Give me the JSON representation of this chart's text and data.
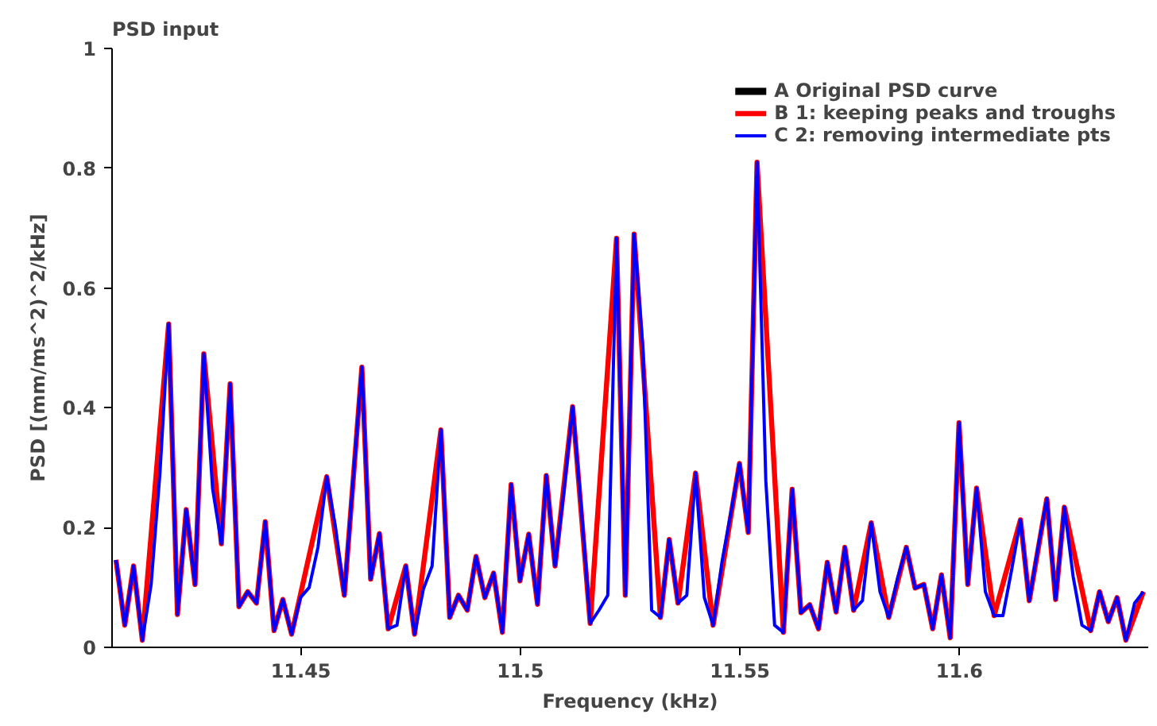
{
  "chart_data": {
    "type": "line",
    "title": "PSD input",
    "xlabel": "Frequency (kHz)",
    "ylabel": "PSD [(mm/ms^2)^2/kHz]",
    "xlim": [
      11.407,
      11.643
    ],
    "ylim": [
      0,
      1
    ],
    "xticks": [
      11.45,
      11.5,
      11.55,
      11.6
    ],
    "yticks": [
      0,
      0.2,
      0.4,
      0.6,
      0.8,
      1
    ],
    "grid": false,
    "legend": "top right",
    "line_style": "solid",
    "marker": "none",
    "series": [
      {
        "name": "A Original PSD curve",
        "color": "#000000"
      },
      {
        "name": "B 1: keeping peaks and troughs",
        "color": "#ff0000",
        "x": [
          11.4079,
          11.4099,
          11.4119,
          11.4139,
          11.4199,
          11.4219,
          11.4239,
          11.4259,
          11.4279,
          11.4319,
          11.4339,
          11.4359,
          11.4379,
          11.4399,
          11.4419,
          11.4439,
          11.4459,
          11.4479,
          11.4559,
          11.4599,
          11.4639,
          11.4659,
          11.4679,
          11.4699,
          11.4739,
          11.4759,
          11.4819,
          11.4839,
          11.4859,
          11.4879,
          11.4899,
          11.4919,
          11.4939,
          11.4959,
          11.4979,
          11.4999,
          11.5019,
          11.5039,
          11.5059,
          11.5079,
          11.5119,
          11.5159,
          11.5219,
          11.5239,
          11.5259,
          11.5319,
          11.5339,
          11.5359,
          11.5399,
          11.5439,
          11.5499,
          11.5519,
          11.5539,
          11.5599,
          11.5619,
          11.5639,
          11.5659,
          11.5679,
          11.5699,
          11.5719,
          11.5739,
          11.5759,
          11.5799,
          11.5839,
          11.5879,
          11.5899,
          11.5919,
          11.5939,
          11.5959,
          11.5979,
          11.5999,
          11.6019,
          11.6039,
          11.6079,
          11.6139,
          11.6159,
          11.6199,
          11.6219,
          11.6239,
          11.6299,
          11.6319,
          11.6339,
          11.6359,
          11.6379,
          11.6419
        ],
        "values": [
          0.146,
          0.037,
          0.136,
          0.012,
          0.54,
          0.055,
          0.23,
          0.105,
          0.49,
          0.173,
          0.44,
          0.068,
          0.093,
          0.074,
          0.21,
          0.028,
          0.08,
          0.022,
          0.285,
          0.087,
          0.468,
          0.114,
          0.19,
          0.031,
          0.136,
          0.022,
          0.363,
          0.05,
          0.087,
          0.062,
          0.152,
          0.083,
          0.124,
          0.025,
          0.272,
          0.111,
          0.189,
          0.072,
          0.287,
          0.136,
          0.402,
          0.04,
          0.683,
          0.087,
          0.69,
          0.05,
          0.18,
          0.074,
          0.291,
          0.037,
          0.307,
          0.192,
          0.81,
          0.025,
          0.264,
          0.058,
          0.071,
          0.031,
          0.142,
          0.059,
          0.167,
          0.062,
          0.208,
          0.05,
          0.167,
          0.099,
          0.105,
          0.031,
          0.121,
          0.016,
          0.375,
          0.105,
          0.266,
          0.053,
          0.213,
          0.078,
          0.248,
          0.08,
          0.234,
          0.028,
          0.093,
          0.043,
          0.083,
          0.012,
          0.093
        ]
      },
      {
        "name": "C 2: removing intermediate pts",
        "color": "#0000ff",
        "x": [
          11.4079,
          11.4099,
          11.4119,
          11.4139,
          11.4159,
          11.4179,
          11.4199,
          11.4219,
          11.4239,
          11.4259,
          11.4279,
          11.4299,
          11.4319,
          11.4339,
          11.4359,
          11.4379,
          11.4399,
          11.4419,
          11.4439,
          11.4459,
          11.4479,
          11.4499,
          11.4519,
          11.4539,
          11.4559,
          11.4579,
          11.4599,
          11.4619,
          11.4639,
          11.4659,
          11.4679,
          11.4699,
          11.4719,
          11.4739,
          11.4759,
          11.4779,
          11.4799,
          11.4819,
          11.4839,
          11.4859,
          11.4879,
          11.4899,
          11.4919,
          11.4939,
          11.4959,
          11.4979,
          11.4999,
          11.5019,
          11.5039,
          11.5059,
          11.5079,
          11.5099,
          11.5119,
          11.5139,
          11.5159,
          11.5179,
          11.5199,
          11.5219,
          11.5239,
          11.5259,
          11.5279,
          11.5299,
          11.5319,
          11.5339,
          11.5359,
          11.5379,
          11.5399,
          11.5419,
          11.5439,
          11.5459,
          11.5479,
          11.5499,
          11.5519,
          11.5539,
          11.5559,
          11.5579,
          11.5599,
          11.5619,
          11.5639,
          11.5659,
          11.5679,
          11.5699,
          11.5719,
          11.5739,
          11.5759,
          11.5779,
          11.5799,
          11.5819,
          11.5839,
          11.5859,
          11.5879,
          11.5899,
          11.5919,
          11.5939,
          11.5959,
          11.5979,
          11.5999,
          11.6019,
          11.6039,
          11.6059,
          11.6079,
          11.6099,
          11.6119,
          11.6139,
          11.6159,
          11.6179,
          11.6199,
          11.6219,
          11.6239,
          11.6259,
          11.6279,
          11.6299,
          11.6319,
          11.6339,
          11.6359,
          11.6379,
          11.6399,
          11.6419
        ],
        "values": [
          0.146,
          0.037,
          0.136,
          0.012,
          0.105,
          0.29,
          0.54,
          0.055,
          0.23,
          0.105,
          0.49,
          0.265,
          0.173,
          0.44,
          0.068,
          0.093,
          0.074,
          0.21,
          0.028,
          0.08,
          0.022,
          0.083,
          0.1,
          0.167,
          0.285,
          0.2,
          0.087,
          0.28,
          0.468,
          0.114,
          0.19,
          0.031,
          0.037,
          0.136,
          0.022,
          0.097,
          0.136,
          0.363,
          0.05,
          0.087,
          0.062,
          0.152,
          0.083,
          0.124,
          0.025,
          0.272,
          0.111,
          0.189,
          0.072,
          0.287,
          0.136,
          0.26,
          0.402,
          0.229,
          0.04,
          0.062,
          0.087,
          0.683,
          0.087,
          0.69,
          0.5,
          0.062,
          0.05,
          0.18,
          0.074,
          0.087,
          0.291,
          0.083,
          0.037,
          0.142,
          0.223,
          0.307,
          0.192,
          0.81,
          0.278,
          0.037,
          0.025,
          0.264,
          0.058,
          0.071,
          0.031,
          0.142,
          0.059,
          0.167,
          0.062,
          0.078,
          0.208,
          0.093,
          0.05,
          0.115,
          0.167,
          0.099,
          0.105,
          0.031,
          0.121,
          0.016,
          0.375,
          0.105,
          0.266,
          0.093,
          0.053,
          0.053,
          0.13,
          0.213,
          0.078,
          0.167,
          0.248,
          0.08,
          0.234,
          0.118,
          0.037,
          0.028,
          0.093,
          0.043,
          0.083,
          0.012,
          0.074,
          0.093
        ]
      }
    ]
  }
}
